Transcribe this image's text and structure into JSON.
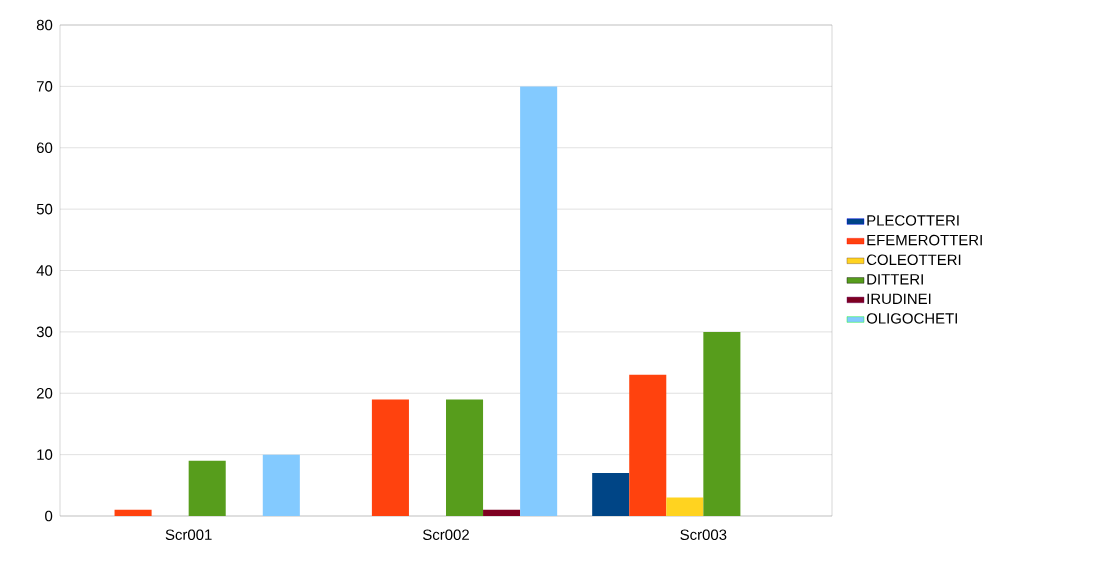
{
  "chart_data": {
    "type": "bar",
    "categories": [
      "Scr001",
      "Scr002",
      "Scr003"
    ],
    "series": [
      {
        "name": "PLECOTTERI",
        "color": "#004586",
        "values": [
          0,
          0,
          7
        ]
      },
      {
        "name": "EFEMEROTTERI",
        "color": "#ff420e",
        "values": [
          1,
          19,
          23
        ]
      },
      {
        "name": "COLEOTTERI",
        "color": "#ffd320",
        "values": [
          0,
          0,
          3
        ]
      },
      {
        "name": "DITTERI",
        "color": "#579d1c",
        "values": [
          9,
          19,
          30
        ]
      },
      {
        "name": "IRUDINEI",
        "color": "#7e0021",
        "values": [
          0,
          1,
          0
        ]
      },
      {
        "name": "OLIGOCHETI",
        "color": "#83caff",
        "values": [
          10,
          70,
          0
        ]
      }
    ],
    "ylim": [
      0,
      80
    ],
    "yticks": [
      0,
      10,
      20,
      30,
      40,
      50,
      60,
      70,
      80
    ],
    "grid": "y",
    "legend": "right"
  }
}
